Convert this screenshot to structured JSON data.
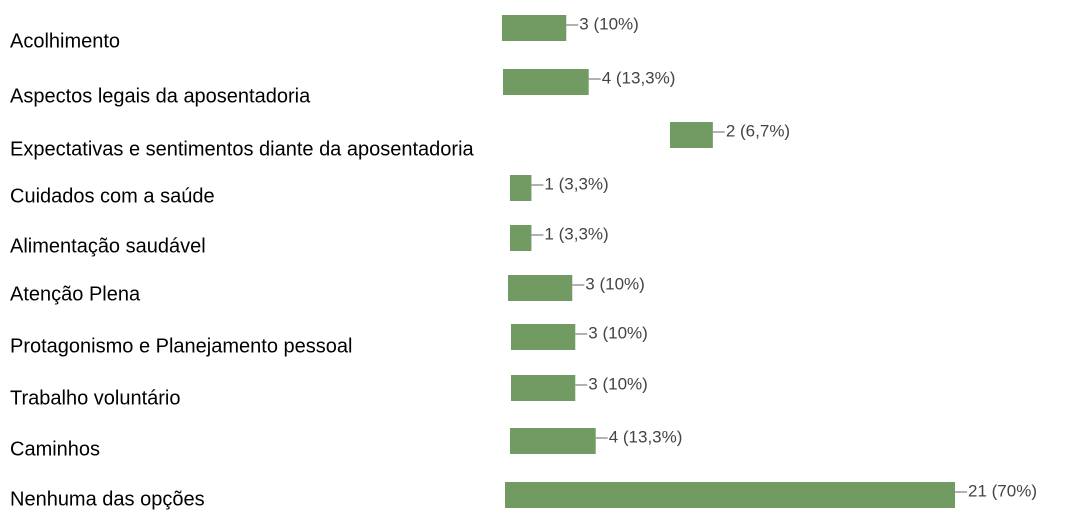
{
  "chart_data": {
    "type": "hbar",
    "categories": [
      "Acolhimento",
      "Aspectos legais da aposentadoria",
      "Expectativas e sentimentos diante da aposentadoria",
      "Cuidados com a saúde",
      "Alimentação saudável",
      "Atenção Plena",
      "Protagonismo e Planejamento pessoal",
      "Trabalho voluntário",
      "Caminhos",
      "Nenhuma das opções"
    ],
    "values": [
      3,
      4,
      2,
      1,
      1,
      3,
      3,
      3,
      4,
      21
    ],
    "value_labels": [
      "3 (10%)",
      "4 (13,3%)",
      "2 (6,7%)",
      "1 (3,3%)",
      "1 (3,3%)",
      "3 (10%)",
      "3 (10%)",
      "3 (10%)",
      "4 (13,3%)",
      "21 (70%)"
    ],
    "color": "#729b64"
  }
}
